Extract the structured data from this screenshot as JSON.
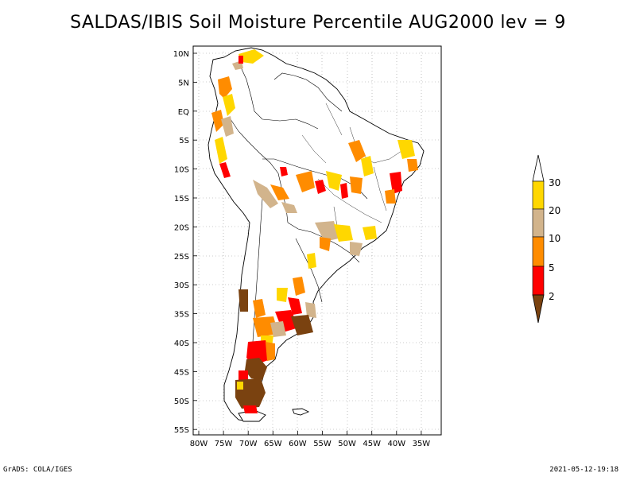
{
  "title": "SALDAS/IBIS Soil Moisture Percentile AUG2000 lev = 9",
  "footer": {
    "left": "GrADS: COLA/IGES",
    "right": "2021-05-12-19:18"
  },
  "map": {
    "lon_range": [
      -81,
      -30
    ],
    "lat_range": [
      -56,
      12
    ],
    "x_ticks": [
      "80W",
      "75W",
      "70W",
      "65W",
      "60W",
      "55W",
      "50W",
      "45W",
      "40W",
      "35W"
    ],
    "y_ticks": [
      "10N",
      "5N",
      "EQ",
      "5S",
      "10S",
      "15S",
      "20S",
      "25S",
      "30S",
      "35S",
      "40S",
      "45S",
      "50S",
      "55S"
    ],
    "grid_style": "dotted",
    "coastline_color": "#000000"
  },
  "legend": {
    "placement": "right",
    "labels": [
      "2",
      "5",
      "10",
      "20",
      "30"
    ],
    "colors": {
      "below_2": "#7a4210",
      "2_to_5": "#ff0000",
      "5_to_10": "#ff8c00",
      "10_to_20": "#d2b48c",
      "20_to_30": "#ffd700",
      "above_30": "#ffffff"
    }
  }
}
